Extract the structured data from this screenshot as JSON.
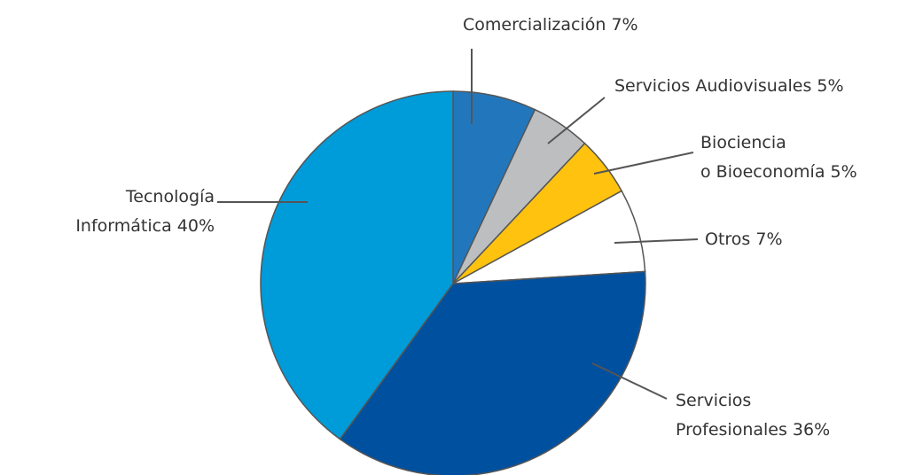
{
  "chart_data": {
    "type": "pie",
    "categories": [
      "Comercialización",
      "Servicios Audiovisuales",
      "Biociencia\no Bioeconomía",
      "Otros",
      "Servicios\nProfesionales",
      "Tecnología\nInformática"
    ],
    "values": [
      7,
      5,
      5,
      7,
      36,
      40
    ],
    "value_labels": [
      "7%",
      "5%",
      "5%",
      "7%",
      "36%",
      "40%"
    ],
    "colors": [
      "#2277bc",
      "#bcbec0",
      "#ffc20e",
      "#ffffff",
      "#0050a0",
      "#009bd9"
    ]
  }
}
